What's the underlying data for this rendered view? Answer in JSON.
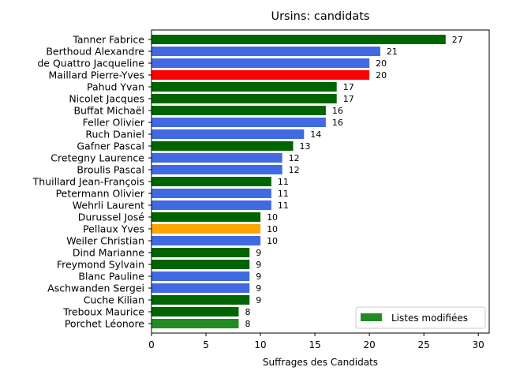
{
  "chart_data": {
    "type": "bar",
    "orientation": "horizontal",
    "title": "Ursins: candidats",
    "xlabel": "Suffrages des Candidats",
    "ylabel": "",
    "xlim": [
      0,
      31
    ],
    "xticks": [
      0,
      5,
      10,
      15,
      20,
      25,
      30
    ],
    "grid": false,
    "legend": {
      "position": "lower-right",
      "entries": [
        {
          "label": "Listes modifiées",
          "color": "#228b22"
        }
      ]
    },
    "bars": [
      {
        "name": "Tanner Fabrice",
        "value": 27,
        "color": "#006400"
      },
      {
        "name": "Berthoud Alexandre",
        "value": 21,
        "color": "#4169e1"
      },
      {
        "name": "de Quattro Jacqueline",
        "value": 20,
        "color": "#4169e1"
      },
      {
        "name": "Maillard Pierre-Yves",
        "value": 20,
        "color": "#ff0000"
      },
      {
        "name": "Pahud Yvan",
        "value": 17,
        "color": "#006400"
      },
      {
        "name": "Nicolet Jacques",
        "value": 17,
        "color": "#006400"
      },
      {
        "name": "Buffat Michaël",
        "value": 16,
        "color": "#006400"
      },
      {
        "name": "Feller Olivier",
        "value": 16,
        "color": "#4169e1"
      },
      {
        "name": "Ruch Daniel",
        "value": 14,
        "color": "#4169e1"
      },
      {
        "name": "Gafner Pascal",
        "value": 13,
        "color": "#006400"
      },
      {
        "name": "Cretegny Laurence",
        "value": 12,
        "color": "#4169e1"
      },
      {
        "name": "Broulis Pascal",
        "value": 12,
        "color": "#4169e1"
      },
      {
        "name": "Thuillard Jean-François",
        "value": 11,
        "color": "#006400"
      },
      {
        "name": "Petermann Olivier",
        "value": 11,
        "color": "#4169e1"
      },
      {
        "name": "Wehrli Laurent",
        "value": 11,
        "color": "#4169e1"
      },
      {
        "name": "Durussel José",
        "value": 10,
        "color": "#006400"
      },
      {
        "name": "Pellaux Yves",
        "value": 10,
        "color": "#ffa500"
      },
      {
        "name": "Weiler Christian",
        "value": 10,
        "color": "#4169e1"
      },
      {
        "name": "Dind Marianne",
        "value": 9,
        "color": "#006400"
      },
      {
        "name": "Freymond Sylvain",
        "value": 9,
        "color": "#006400"
      },
      {
        "name": "Blanc Pauline",
        "value": 9,
        "color": "#4169e1"
      },
      {
        "name": "Aschwanden Sergei",
        "value": 9,
        "color": "#4169e1"
      },
      {
        "name": "Cuche Kilian",
        "value": 9,
        "color": "#006400"
      },
      {
        "name": "Treboux Maurice",
        "value": 8,
        "color": "#006400"
      },
      {
        "name": "Porchet Léonore",
        "value": 8,
        "color": "#228b22"
      }
    ]
  }
}
